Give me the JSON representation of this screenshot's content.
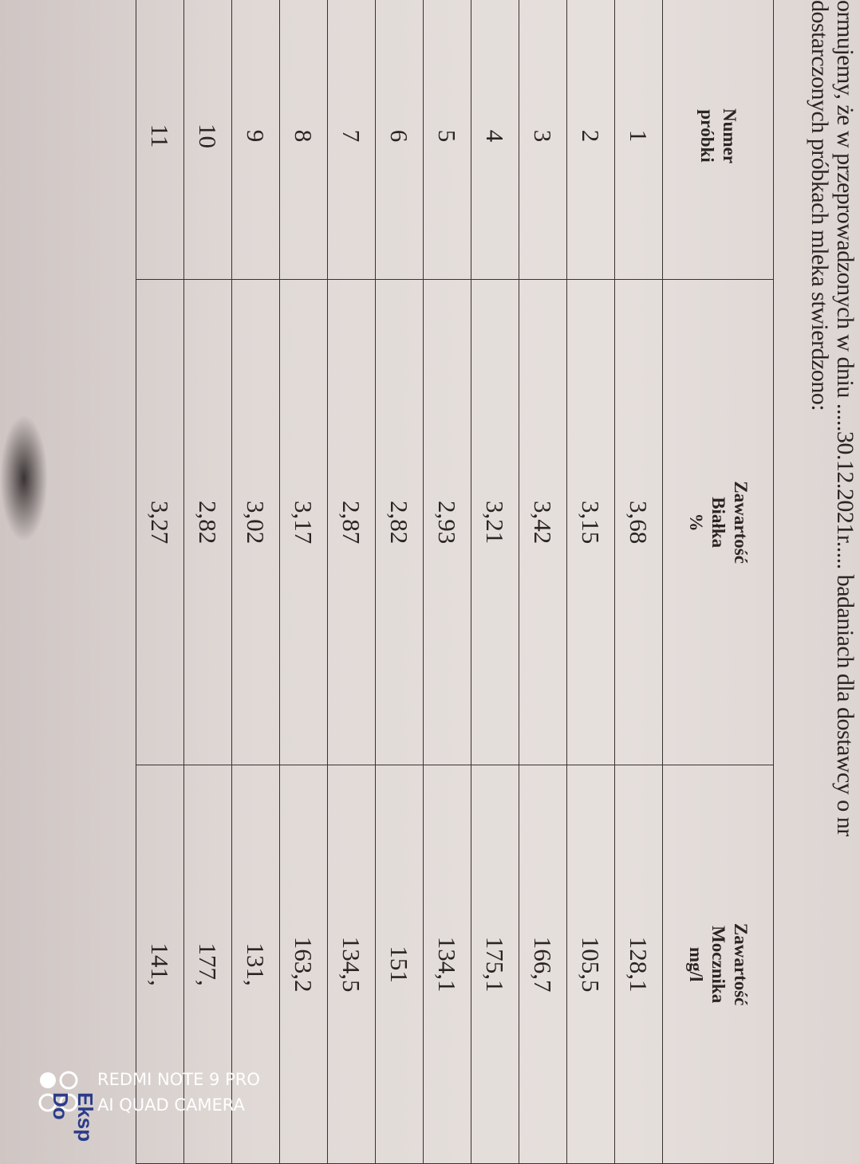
{
  "document": {
    "intro_line_1": "ormujemy, że w przeprowadzonych  w dniu  .....30.12.2021r..... badaniach dla dostawcy o nr",
    "intro_line_2": "dostarczonych próbkach mleka stwierdzono:",
    "table": {
      "headers": [
        {
          "line1": "Numer",
          "line2": "próbki",
          "line3": ""
        },
        {
          "line1": "Zawartość",
          "line2": "Białka",
          "line3": "%"
        },
        {
          "line1": "Zawartość",
          "line2": "Mocznika",
          "line3": "mg/l"
        }
      ],
      "rows": [
        {
          "sample": "1",
          "protein": "3,68",
          "urea": "128,1"
        },
        {
          "sample": "2",
          "protein": "3,15",
          "urea": "105,5"
        },
        {
          "sample": "3",
          "protein": "3,42",
          "urea": "166,7"
        },
        {
          "sample": "4",
          "protein": "3,21",
          "urea": "175,1"
        },
        {
          "sample": "5",
          "protein": "2,93",
          "urea": "134,1"
        },
        {
          "sample": "6",
          "protein": "2,82",
          "urea": "151"
        },
        {
          "sample": "7",
          "protein": "2,87",
          "urea": "134,5"
        },
        {
          "sample": "8",
          "protein": "3,17",
          "urea": "163,2"
        },
        {
          "sample": "9",
          "protein": "3,02",
          "urea": "131,"
        },
        {
          "sample": "10",
          "protein": "2,82",
          "urea": "177,"
        },
        {
          "sample": "11",
          "protein": "3,27",
          "urea": "141,"
        }
      ]
    }
  },
  "watermark": {
    "line1": "REDMI NOTE 9 PRO",
    "line2": "AI QUAD CAMERA"
  },
  "corner_stamp": {
    "line1": "Eksp",
    "line2": "Do"
  }
}
